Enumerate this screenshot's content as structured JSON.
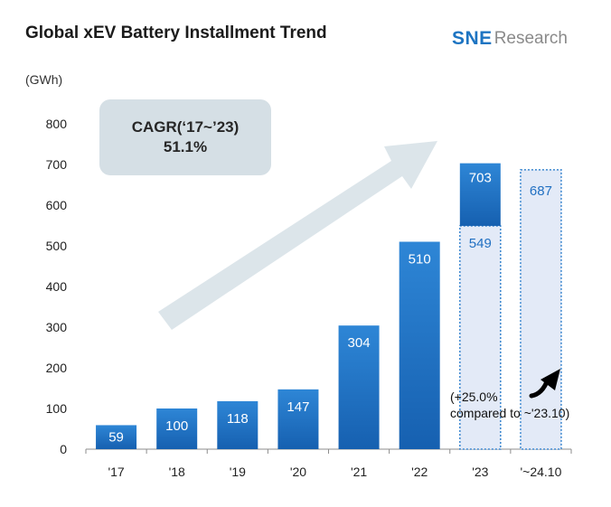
{
  "chart_data": {
    "type": "bar",
    "title": "Global xEV Battery Installment Trend",
    "source_logo": {
      "primary": "SNE",
      "secondary": "Research"
    },
    "ylabel": "(GWh)",
    "ylim": [
      0,
      800
    ],
    "yticks": [
      0,
      100,
      200,
      300,
      400,
      500,
      600,
      700,
      800
    ],
    "categories": [
      "'17",
      "'18",
      "'19",
      "'20",
      "'21",
      "'22",
      "'23",
      "'~24.10"
    ],
    "series": [
      {
        "values": [
          59,
          100,
          118,
          147,
          304,
          510,
          703,
          null
        ],
        "color": "#1f6fc0"
      }
    ],
    "data_labels": [
      "59",
      "100",
      "118",
      "147",
      "304",
      "510",
      "703",
      "687"
    ],
    "comparison": {
      "category": "'23",
      "value": 549,
      "label": "549",
      "style": "dotted-outline"
    },
    "ytd": {
      "category": "'~24.10",
      "value": 687,
      "label": "687",
      "style": "dotted-outline"
    },
    "cagr_box": {
      "line1": "CAGR(‘17~’23)",
      "line2": "51.1%"
    },
    "growth_note": {
      "line1": "(+25.0%",
      "line2": "compared to ~'23.10)"
    },
    "grid": false,
    "legend": "none"
  },
  "colors": {
    "bar_top": "#2e86d6",
    "bar_bottom": "#1660b0",
    "dotted_fill": "#e3eaf7",
    "dotted_stroke": "#3a86cf",
    "arrow": "#dce5ea",
    "callout": "#d5dfe5",
    "axis": "#8c8c8c"
  }
}
